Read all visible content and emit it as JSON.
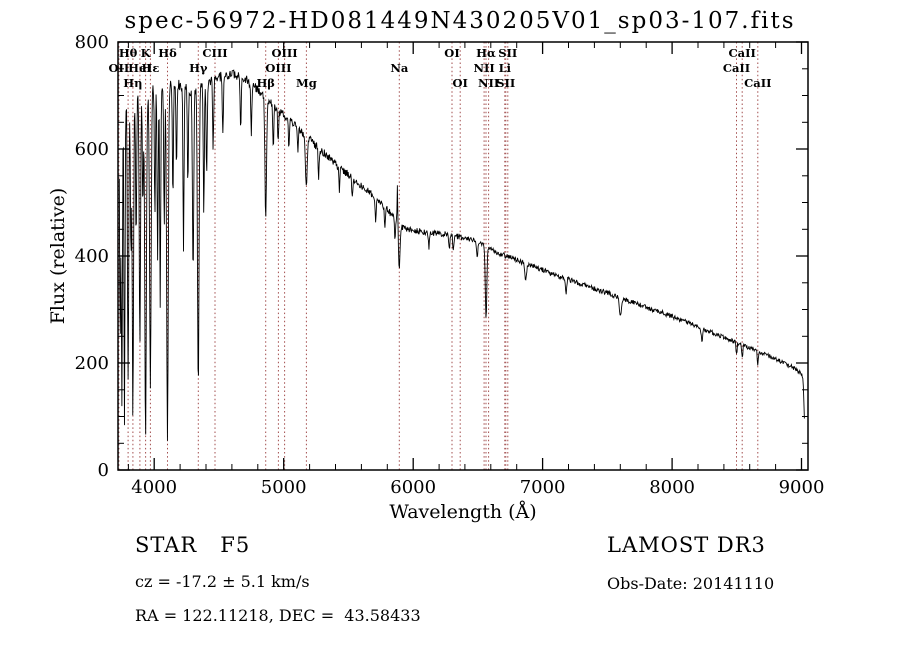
{
  "figure": {
    "title": "spec-56972-HD081449N430205V01_sp03-107.fits",
    "xlabel": "Wavelength (Å)",
    "ylabel": "Flux (relative)"
  },
  "footer": {
    "class_label": "STAR   F5",
    "cz": "cz = -17.2 ± 5.1 km/s",
    "radec": "RA = 122.11218, DEC =  43.58433",
    "survey": "LAMOST DR3",
    "obs_date": "Obs-Date: 20141110"
  },
  "chart_data": {
    "type": "line",
    "title": "spec-56972-HD081449N430205V01_sp03-107.fits",
    "xlabel": "Wavelength (Å)",
    "ylabel": "Flux (relative)",
    "xlim": [
      3720,
      9050
    ],
    "ylim": [
      0,
      800
    ],
    "xticks": [
      4000,
      5000,
      6000,
      7000,
      8000,
      9000
    ],
    "yticks": [
      0,
      200,
      400,
      600,
      800
    ],
    "x_minor_step": 200,
    "y_minor_step": 50,
    "grid": false,
    "legend": "none",
    "line_color": "#000000",
    "marker_color": "#a24d4d",
    "label_color": "#000000",
    "sample_step": 4,
    "continuum": {
      "x": [
        3730,
        3760,
        3800,
        3850,
        3900,
        3950,
        4000,
        4060,
        4120,
        4180,
        4240,
        4300,
        4360,
        4420,
        4480,
        4540,
        4600,
        4660,
        4720,
        4780,
        4840,
        4900,
        4960,
        5020,
        5080,
        5140,
        5200,
        5300,
        5400,
        5500,
        5600,
        5700,
        5800,
        5880,
        5940,
        6000,
        6080,
        6160,
        6240,
        6320,
        6400,
        6480,
        6560,
        6640,
        6720,
        6800,
        6900,
        7000,
        7100,
        7200,
        7300,
        7400,
        7500,
        7600,
        7700,
        7800,
        7900,
        8000,
        8100,
        8200,
        8300,
        8400,
        8500,
        8600,
        8700,
        8800,
        8900,
        8960,
        9000,
        9012,
        9022
      ],
      "flux": [
        620,
        680,
        700,
        695,
        705,
        700,
        715,
        710,
        718,
        722,
        712,
        708,
        715,
        725,
        732,
        738,
        740,
        735,
        728,
        715,
        700,
        688,
        672,
        658,
        645,
        632,
        618,
        595,
        572,
        552,
        532,
        510,
        488,
        462,
        450,
        448,
        445,
        443,
        441,
        438,
        433,
        427,
        420,
        408,
        400,
        393,
        383,
        374,
        365,
        356,
        348,
        339,
        331,
        322,
        313,
        304,
        296,
        287,
        278,
        268,
        258,
        248,
        238,
        228,
        218,
        208,
        196,
        188,
        180,
        172,
        95
      ]
    },
    "absorption_features": [
      [
        3737,
        380,
        4
      ],
      [
        3750,
        540,
        4
      ],
      [
        3770,
        600,
        4
      ],
      [
        3798,
        520,
        5
      ],
      [
        3820,
        300,
        4
      ],
      [
        3835,
        600,
        5
      ],
      [
        3860,
        280,
        4
      ],
      [
        3889,
        470,
        5
      ],
      [
        3912,
        220,
        4
      ],
      [
        3933,
        640,
        6
      ],
      [
        3970,
        550,
        6
      ],
      [
        4005,
        240,
        4
      ],
      [
        4026,
        330,
        4
      ],
      [
        4046,
        400,
        4
      ],
      [
        4077,
        260,
        4
      ],
      [
        4102,
        655,
        6
      ],
      [
        4144,
        220,
        4
      ],
      [
        4172,
        160,
        4
      ],
      [
        4226,
        300,
        4
      ],
      [
        4260,
        180,
        4
      ],
      [
        4300,
        340,
        5
      ],
      [
        4340,
        560,
        6
      ],
      [
        4383,
        240,
        4
      ],
      [
        4405,
        170,
        4
      ],
      [
        4455,
        130,
        4
      ],
      [
        4530,
        110,
        4
      ],
      [
        4668,
        100,
        4
      ],
      [
        4750,
        90,
        4
      ],
      [
        4861,
        225,
        6
      ],
      [
        4920,
        80,
        4
      ],
      [
        4957,
        60,
        4
      ],
      [
        5040,
        50,
        4
      ],
      [
        5110,
        45,
        4
      ],
      [
        5175,
        95,
        7
      ],
      [
        5270,
        55,
        4
      ],
      [
        5430,
        45,
        4
      ],
      [
        5530,
        40,
        4
      ],
      [
        5710,
        40,
        4
      ],
      [
        5782,
        45,
        4
      ],
      [
        5860,
        40,
        4
      ],
      [
        5893,
        82,
        6
      ],
      [
        6122,
        30,
        4
      ],
      [
        6280,
        28,
        4
      ],
      [
        6310,
        25,
        4
      ],
      [
        6495,
        30,
        4
      ],
      [
        6563,
        138,
        6
      ],
      [
        6870,
        32,
        6
      ],
      [
        7180,
        28,
        5
      ],
      [
        7600,
        38,
        7
      ],
      [
        8230,
        25,
        5
      ],
      [
        8498,
        22,
        4
      ],
      [
        8542,
        26,
        4
      ],
      [
        8662,
        24,
        4
      ]
    ],
    "emission_features": [
      [
        5878,
        78,
        2.5
      ]
    ],
    "noise": {
      "seed": 20141110,
      "x": [
        3730,
        4500,
        5500,
        6500,
        9040
      ],
      "amplitude": [
        13,
        9,
        7,
        5,
        4
      ]
    },
    "spectral_lines": [
      {
        "label": "OII",
        "wavelength": 3727,
        "row": 2
      },
      {
        "label": "Hθ",
        "wavelength": 3798,
        "row": 1
      },
      {
        "label": "Hη",
        "wavelength": 3835,
        "row": 3
      },
      {
        "label": "HeI",
        "wavelength": 3889,
        "row": 2
      },
      {
        "label": "K",
        "wavelength": 3933,
        "row": 1
      },
      {
        "label": "Hε",
        "wavelength": 3970,
        "row": 2
      },
      {
        "label": "Hδ",
        "wavelength": 4102,
        "row": 1
      },
      {
        "label": "Hγ",
        "wavelength": 4340,
        "row": 2
      },
      {
        "label": "CIII",
        "wavelength": 4469,
        "row": 1
      },
      {
        "label": "Hβ",
        "wavelength": 4861,
        "row": 3
      },
      {
        "label": "OIII",
        "wavelength": 4959,
        "row": 2
      },
      {
        "label": "OIII",
        "wavelength": 5007,
        "row": 1
      },
      {
        "label": "Mg",
        "wavelength": 5175,
        "row": 3
      },
      {
        "label": "Na",
        "wavelength": 5893,
        "row": 2
      },
      {
        "label": "OI",
        "wavelength": 6300,
        "row": 1
      },
      {
        "label": "OI",
        "wavelength": 6363,
        "row": 3
      },
      {
        "label": "NII",
        "wavelength": 6548,
        "row": 2
      },
      {
        "label": "Hα",
        "wavelength": 6563,
        "row": 1
      },
      {
        "label": "NII",
        "wavelength": 6583,
        "row": 3
      },
      {
        "label": "Li",
        "wavelength": 6708,
        "row": 2
      },
      {
        "label": "SII",
        "wavelength": 6716,
        "row": 3
      },
      {
        "label": "SII",
        "wavelength": 6731,
        "row": 1
      },
      {
        "label": "CaII",
        "wavelength": 8498,
        "row": 2
      },
      {
        "label": "CaII",
        "wavelength": 8542,
        "row": 1
      },
      {
        "label": "CaII",
        "wavelength": 8662,
        "row": 3
      }
    ]
  }
}
